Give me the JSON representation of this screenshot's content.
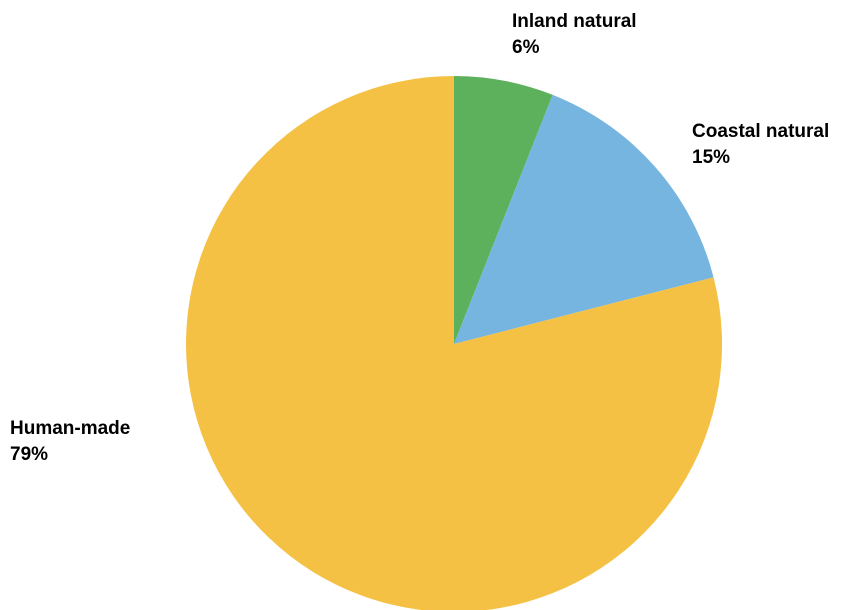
{
  "chart_data": {
    "type": "pie",
    "slices": [
      {
        "name": "Inland natural",
        "value": 6,
        "value_label": "6%",
        "color": "#5db05c"
      },
      {
        "name": "Coastal natural",
        "value": 15,
        "value_label": "15%",
        "color": "#75b5e0"
      },
      {
        "name": "Human-made",
        "value": 79,
        "value_label": "79%",
        "color": "#f4c144"
      }
    ],
    "start_angle_deg": 0,
    "direction": "clockwise",
    "legend": "none"
  }
}
